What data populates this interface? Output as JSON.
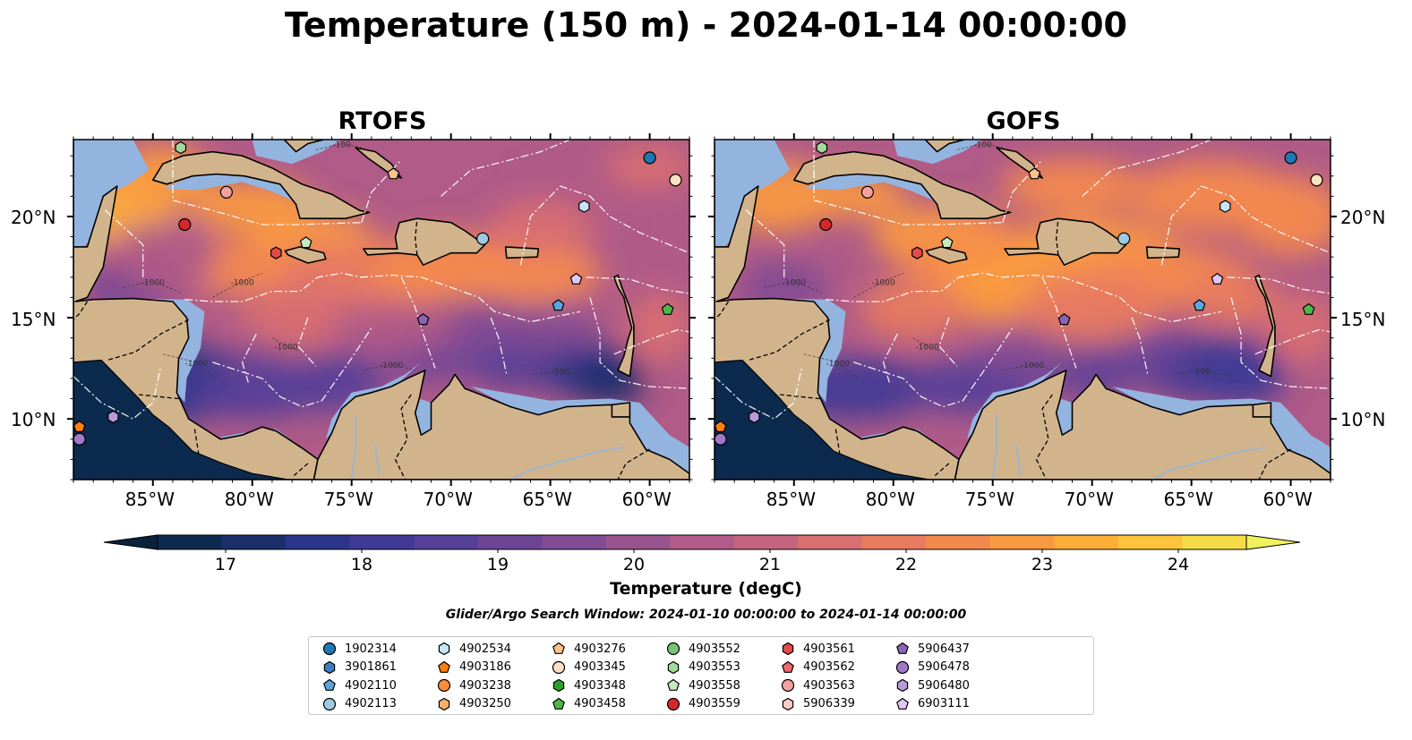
{
  "title": "Temperature (150 m) - 2024-01-14 00:00:00",
  "panels": [
    {
      "title": "RTOFS",
      "variant": "rtofs"
    },
    {
      "title": "GOFS",
      "variant": "gofs"
    }
  ],
  "lat_ticks": [
    {
      "label": "20°N",
      "value": 20
    },
    {
      "label": "15°N",
      "value": 15
    },
    {
      "label": "10°N",
      "value": 10
    }
  ],
  "lon_ticks": [
    {
      "label": "85°W",
      "value": -85
    },
    {
      "label": "80°W",
      "value": -80
    },
    {
      "label": "75°W",
      "value": -75
    },
    {
      "label": "70°W",
      "value": -70
    },
    {
      "label": "65°W",
      "value": -65
    },
    {
      "label": "60°W",
      "value": -60
    }
  ],
  "extent": {
    "lon_min": -89,
    "lon_max": -58,
    "lat_min": 7,
    "lat_max": 23.8
  },
  "colorbar": {
    "label": "Temperature (degC)",
    "min": 16.5,
    "max": 24.5,
    "step": 0.5,
    "ticks": [
      17,
      18,
      19,
      20,
      21,
      22,
      23,
      24
    ],
    "colors": [
      "#07223a",
      "#0b2a4e",
      "#1c2f6b",
      "#2b358a",
      "#403a96",
      "#553f98",
      "#6c4597",
      "#824c94",
      "#995490",
      "#b05b88",
      "#c5647e",
      "#d86f71",
      "#e87b60",
      "#f4894e",
      "#fa9a40",
      "#fdae38",
      "#fcc33c",
      "#f6dd48",
      "#f0f15e"
    ]
  },
  "colors": {
    "land": "#d2b48c",
    "shelf": "#94b4e0",
    "coast": "#000000",
    "eez": "#ffffff"
  },
  "search_window": "Glider/Argo Search Window: 2024-01-10 00:00:00 to 2024-01-14 00:00:00",
  "floats": [
    {
      "id": "1902314",
      "marker": "circle",
      "color": "#1f77b4",
      "lon": -60.0,
      "lat": 22.9
    },
    {
      "id": "3901861",
      "marker": "hexagon",
      "color": "#3b7ec3",
      "lon": null,
      "lat": null
    },
    {
      "id": "4902110",
      "marker": "pentagon",
      "color": "#5aa6e0",
      "lon": -64.6,
      "lat": 15.6
    },
    {
      "id": "4902113",
      "marker": "circle",
      "color": "#9ecae1",
      "lon": -68.4,
      "lat": 18.9
    },
    {
      "id": "4902534",
      "marker": "hexagon",
      "color": "#c6e4f7",
      "lon": -63.3,
      "lat": 20.5
    },
    {
      "id": "4903186",
      "marker": "pentagon",
      "color": "#ff7f0e",
      "lon": -88.7,
      "lat": 9.6
    },
    {
      "id": "4903238",
      "marker": "circle",
      "color": "#fd8d3c",
      "lon": null,
      "lat": null
    },
    {
      "id": "4903250",
      "marker": "hexagon",
      "color": "#fdae6b",
      "lon": null,
      "lat": null
    },
    {
      "id": "4903276",
      "marker": "pentagon",
      "color": "#fdc28c",
      "lon": -72.9,
      "lat": 22.1
    },
    {
      "id": "4903345",
      "marker": "circle",
      "color": "#fee0c2",
      "lon": -58.7,
      "lat": 21.8
    },
    {
      "id": "4903348",
      "marker": "hexagon",
      "color": "#2ca02c",
      "lon": null,
      "lat": null
    },
    {
      "id": "4903458",
      "marker": "pentagon",
      "color": "#4cb848",
      "lon": -59.1,
      "lat": 15.4
    },
    {
      "id": "4903552",
      "marker": "circle",
      "color": "#74c476",
      "lon": null,
      "lat": null
    },
    {
      "id": "4903553",
      "marker": "hexagon",
      "color": "#a1d99b",
      "lon": -83.6,
      "lat": 23.4
    },
    {
      "id": "4903558",
      "marker": "pentagon",
      "color": "#c7e9c0",
      "lon": -77.3,
      "lat": 18.7
    },
    {
      "id": "4903559",
      "marker": "circle",
      "color": "#d62728",
      "lon": -83.4,
      "lat": 19.6
    },
    {
      "id": "4903561",
      "marker": "hexagon",
      "color": "#e34a4a",
      "lon": -78.8,
      "lat": 18.2
    },
    {
      "id": "4903562",
      "marker": "pentagon",
      "color": "#f0686a",
      "lon": null,
      "lat": null
    },
    {
      "id": "4903563",
      "marker": "circle",
      "color": "#f4a1a1",
      "lon": -81.3,
      "lat": 21.2
    },
    {
      "id": "5906339",
      "marker": "hexagon",
      "color": "#fcc9c9",
      "lon": null,
      "lat": null
    },
    {
      "id": "5906437",
      "marker": "pentagon",
      "color": "#8c62b5",
      "lon": -71.4,
      "lat": 14.9
    },
    {
      "id": "5906478",
      "marker": "circle",
      "color": "#a079c9",
      "lon": -88.7,
      "lat": 9.0
    },
    {
      "id": "5906480",
      "marker": "hexagon",
      "color": "#b99ad9",
      "lon": -87.0,
      "lat": 10.1
    },
    {
      "id": "6903111",
      "marker": "pentagon",
      "color": "#e0c6f2",
      "lon": -63.7,
      "lat": 16.9
    }
  ]
}
